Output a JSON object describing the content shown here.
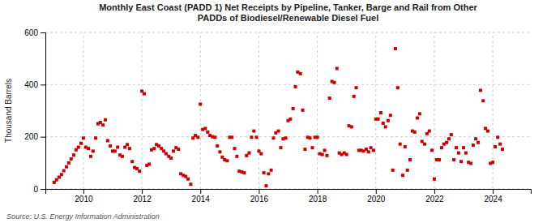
{
  "chart_data": {
    "type": "scatter",
    "title": "Monthly East Coast (PADD 1) Net Receipts by Pipeline, Tanker, Barge and Rail from Other\nPADDs of Biodiesel/Renewable Diesel Fuel",
    "ylabel": "Thousand Barrels",
    "source": "Source: U.S. Energy Information Administration",
    "color": "#cc0000",
    "marker": "square",
    "grid": true,
    "xlim": [
      2008.7,
      2025.3
    ],
    "xticks": [
      2010,
      2012,
      2014,
      2016,
      2018,
      2020,
      2022,
      2024
    ],
    "ylim": [
      0,
      600
    ],
    "yticks": [
      0,
      200,
      400,
      600
    ],
    "x": [
      2009.0,
      2009.08,
      2009.17,
      2009.25,
      2009.33,
      2009.42,
      2009.5,
      2009.58,
      2009.67,
      2009.75,
      2009.83,
      2009.92,
      2010.0,
      2010.08,
      2010.17,
      2010.25,
      2010.33,
      2010.42,
      2010.5,
      2010.58,
      2010.67,
      2010.75,
      2010.83,
      2010.92,
      2011.0,
      2011.08,
      2011.17,
      2011.25,
      2011.33,
      2011.42,
      2011.5,
      2011.58,
      2011.67,
      2011.75,
      2011.83,
      2011.92,
      2012.0,
      2012.08,
      2012.17,
      2012.25,
      2012.33,
      2012.42,
      2012.5,
      2012.58,
      2012.67,
      2012.75,
      2012.83,
      2012.92,
      2013.0,
      2013.08,
      2013.17,
      2013.25,
      2013.33,
      2013.42,
      2013.5,
      2013.58,
      2013.67,
      2013.75,
      2013.83,
      2013.92,
      2014.0,
      2014.08,
      2014.17,
      2014.25,
      2014.33,
      2014.42,
      2014.5,
      2014.58,
      2014.67,
      2014.75,
      2014.83,
      2014.92,
      2015.0,
      2015.08,
      2015.17,
      2015.25,
      2015.33,
      2015.42,
      2015.5,
      2015.58,
      2015.67,
      2015.75,
      2015.83,
      2015.92,
      2016.0,
      2016.08,
      2016.17,
      2016.25,
      2016.33,
      2016.42,
      2016.5,
      2016.58,
      2016.67,
      2016.75,
      2016.83,
      2016.92,
      2017.0,
      2017.08,
      2017.17,
      2017.25,
      2017.33,
      2017.42,
      2017.5,
      2017.58,
      2017.67,
      2017.75,
      2017.83,
      2017.92,
      2018.0,
      2018.08,
      2018.17,
      2018.25,
      2018.33,
      2018.42,
      2018.5,
      2018.58,
      2018.67,
      2018.75,
      2018.83,
      2018.92,
      2019.0,
      2019.08,
      2019.17,
      2019.25,
      2019.33,
      2019.42,
      2019.5,
      2019.58,
      2019.67,
      2019.75,
      2019.83,
      2019.92,
      2020.0,
      2020.08,
      2020.17,
      2020.25,
      2020.33,
      2020.42,
      2020.5,
      2020.58,
      2020.67,
      2020.75,
      2020.83,
      2020.92,
      2021.0,
      2021.08,
      2021.17,
      2021.25,
      2021.33,
      2021.42,
      2021.5,
      2021.58,
      2021.67,
      2021.75,
      2021.83,
      2021.92,
      2022.0,
      2022.08,
      2022.17,
      2022.25,
      2022.33,
      2022.42,
      2022.5,
      2022.58,
      2022.67,
      2022.75,
      2022.83,
      2022.92,
      2023.0,
      2023.08,
      2023.17,
      2023.25,
      2023.33,
      2023.42,
      2023.5,
      2023.58,
      2023.67,
      2023.75,
      2023.83,
      2023.92,
      2024.0,
      2024.08,
      2024.17,
      2024.25,
      2024.33
    ],
    "values": [
      25,
      35,
      45,
      55,
      70,
      85,
      100,
      115,
      130,
      150,
      160,
      175,
      195,
      160,
      155,
      125,
      145,
      195,
      250,
      255,
      245,
      265,
      185,
      165,
      145,
      145,
      160,
      130,
      125,
      160,
      170,
      155,
      105,
      82,
      78,
      68,
      375,
      365,
      90,
      95,
      150,
      155,
      170,
      165,
      155,
      145,
      135,
      125,
      118,
      145,
      158,
      152,
      58,
      52,
      48,
      38,
      18,
      195,
      205,
      198,
      325,
      228,
      232,
      218,
      205,
      200,
      198,
      165,
      142,
      122,
      112,
      108,
      198,
      198,
      155,
      125,
      68,
      65,
      62,
      128,
      138,
      198,
      222,
      198,
      145,
      135,
      62,
      12,
      58,
      72,
      195,
      215,
      222,
      158,
      192,
      195,
      262,
      268,
      308,
      392,
      448,
      442,
      302,
      152,
      198,
      195,
      158,
      198,
      198,
      135,
      132,
      148,
      128,
      348,
      412,
      408,
      462,
      138,
      132,
      138,
      132,
      242,
      238,
      355,
      388,
      148,
      148,
      145,
      152,
      142,
      158,
      148,
      268,
      268,
      292,
      252,
      238,
      262,
      282,
      72,
      538,
      388,
      172,
      52,
      162,
      72,
      112,
      222,
      218,
      272,
      288,
      182,
      172,
      212,
      222,
      148,
      38,
      112,
      112,
      158,
      172,
      178,
      192,
      208,
      112,
      158,
      138,
      105,
      158,
      138,
      102,
      98,
      168,
      192,
      178,
      378,
      338,
      232,
      222,
      98,
      102,
      162,
      198,
      172,
      152
    ]
  }
}
